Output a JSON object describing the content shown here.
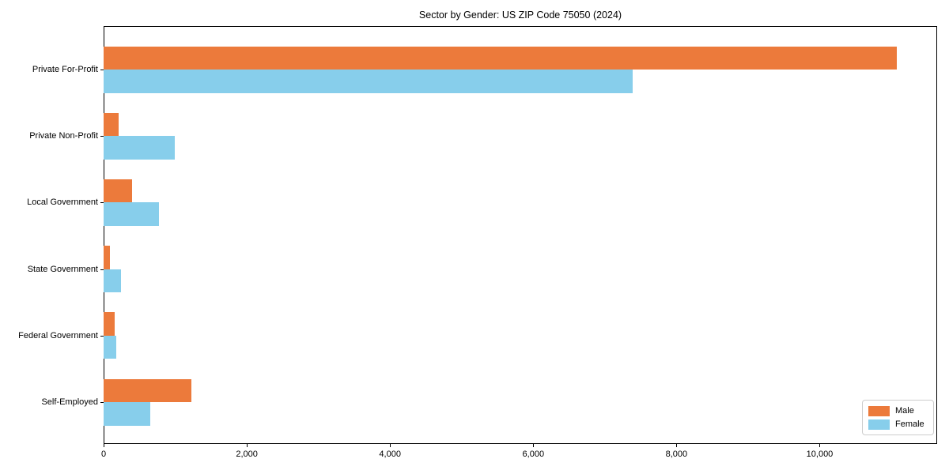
{
  "title": "Sector by Gender: US ZIP Code 75050 (2024)",
  "chart_data": {
    "type": "bar",
    "orientation": "horizontal",
    "title": "Sector by Gender: US ZIP Code 75050 (2024)",
    "categories": [
      "Private For-Profit",
      "Private Non-Profit",
      "Local Government",
      "State Government",
      "Federal Government",
      "Self-Employed"
    ],
    "series": [
      {
        "name": "Male",
        "color": "#EC7A3B",
        "values": [
          11080,
          210,
          400,
          90,
          155,
          1225
        ]
      },
      {
        "name": "Female",
        "color": "#87CEEB",
        "values": [
          7385,
          995,
          775,
          245,
          175,
          650
        ]
      }
    ],
    "xlabel": "",
    "ylabel": "",
    "xlim": [
      0,
      11640
    ],
    "xticks": [
      0,
      2000,
      4000,
      6000,
      8000,
      10000
    ],
    "xtick_labels": [
      "0",
      "2,000",
      "4,000",
      "6,000",
      "8,000",
      "10,000"
    ],
    "grid": false,
    "legend_position": "lower right"
  },
  "legend": {
    "items": [
      {
        "label": "Male",
        "color": "#EC7A3B"
      },
      {
        "label": "Female",
        "color": "#87CEEB"
      }
    ]
  }
}
